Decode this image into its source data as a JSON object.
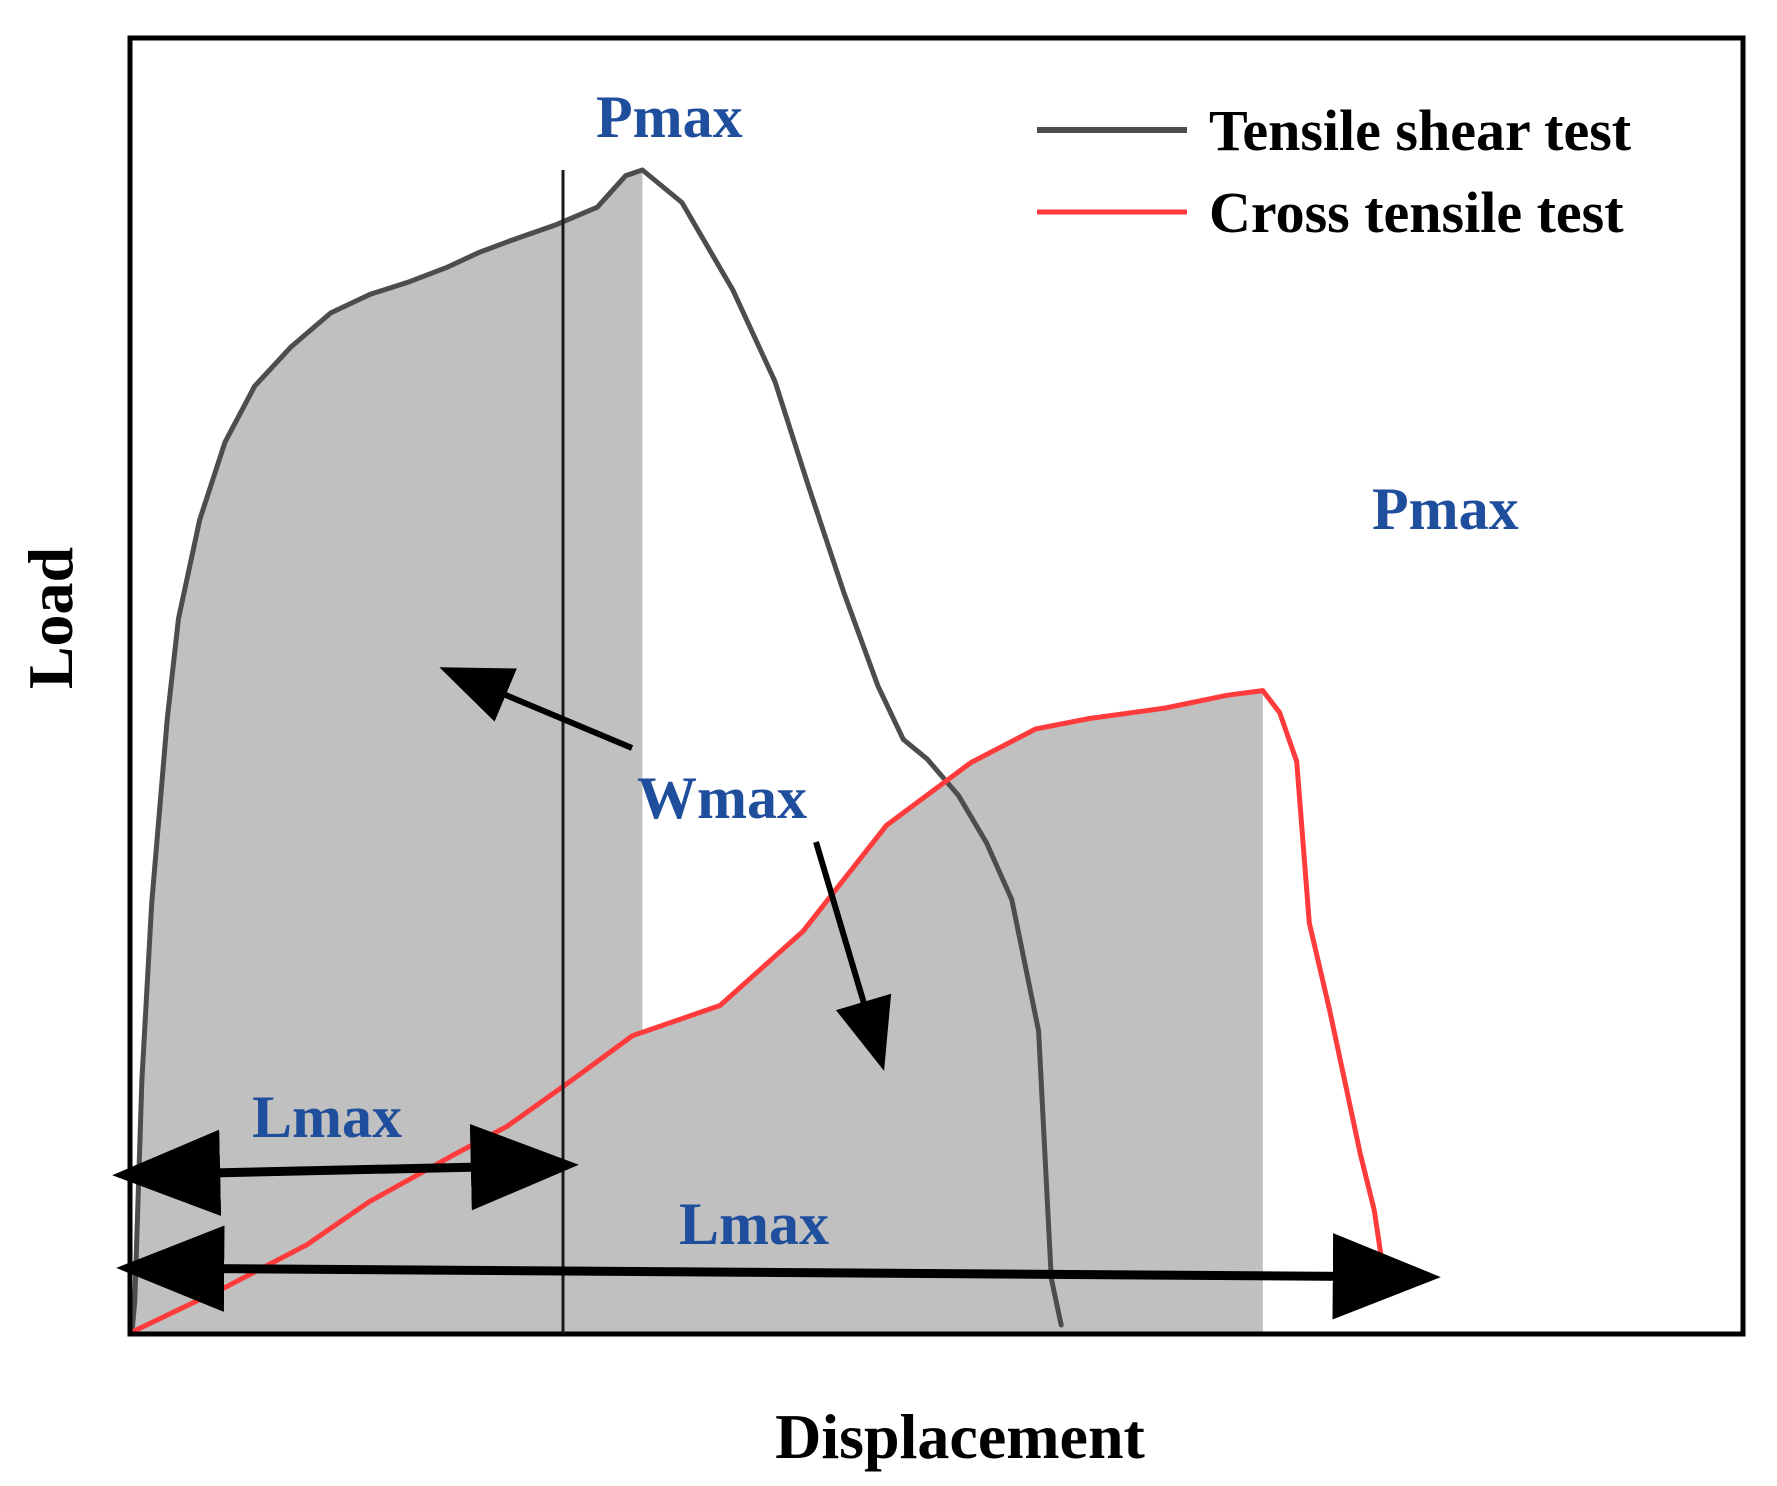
{
  "chart_data": {
    "type": "line",
    "title": "",
    "xlabel": "Displacement",
    "ylabel": "Load",
    "xlim": [
      0,
      100
    ],
    "ylim": [
      0,
      100
    ],
    "grid": false,
    "legend": {
      "placement": "top-right",
      "entries": [
        {
          "label": "Tensile shear test",
          "color": "#4d4d4d"
        },
        {
          "label": "Cross tensile test",
          "color": "#ff3b3b"
        }
      ]
    },
    "series": [
      {
        "name": "Tensile shear test",
        "color": "#4d4d4d",
        "x": [
          0,
          0.2,
          0.7,
          1.4,
          2.5,
          3.3,
          4.8,
          6.6,
          8.7,
          11.3,
          14.1,
          16.9,
          19.7,
          22.3,
          24.6,
          26.8,
          30.1,
          33.0,
          35.0,
          36.2,
          39.0,
          42.6,
          45.6,
          48.0,
          50.5,
          52.9,
          54.7,
          56.4,
          58.6,
          60.6,
          62.4,
          64.3,
          65.2,
          65.9
        ],
        "y": [
          0,
          2.7,
          21.7,
          36.9,
          52.8,
          61.4,
          69.9,
          76.6,
          81.4,
          84.8,
          87.7,
          89.3,
          90.4,
          91.6,
          92.9,
          93.9,
          95.3,
          96.8,
          99.5,
          100,
          97.2,
          89.7,
          81.8,
          72.7,
          63.6,
          55.6,
          51.0,
          49.3,
          46.2,
          42.1,
          37.2,
          25.9,
          4.6,
          0.6
        ]
      },
      {
        "name": "Cross tensile test",
        "color": "#ff3b3b",
        "x": [
          0,
          6.7,
          12.4,
          16.8,
          22.9,
          26.6,
          31.0,
          35.5,
          41.7,
          47.6,
          53.5,
          59.5,
          64.1,
          67.9,
          73.3,
          77.7,
          80.2,
          81.4,
          82.6,
          83.5,
          84.9,
          86.1,
          87.1,
          88.1,
          88.7
        ],
        "y": [
          0,
          3.9,
          7.5,
          11.2,
          15.3,
          17.7,
          21.5,
          25.5,
          28.1,
          34.5,
          43.6,
          49.0,
          51.9,
          52.8,
          53.7,
          54.8,
          55.2,
          53.3,
          49.1,
          35.2,
          27.9,
          21.1,
          15.4,
          10.5,
          5.6
        ]
      }
    ],
    "shaded_regions": [
      {
        "series": "Tensile shear test",
        "x_to": 36.2,
        "color": "#c0c0c0"
      },
      {
        "series": "Cross tensile test",
        "x_to": 80.2,
        "color": "#c0c0c0"
      }
    ],
    "annotations": [
      {
        "id": "pmax_shear",
        "text": "Pmax",
        "color": "#1f4e9c",
        "x": 32,
        "y": 106
      },
      {
        "id": "pmax_cross",
        "text": "Pmax",
        "color": "#1f4e9c",
        "x": 82,
        "y": 69
      },
      {
        "id": "wmax",
        "text": "Wmax",
        "color": "#1f4e9c",
        "x": 38,
        "y": 43
      },
      {
        "id": "lmax_shear",
        "text": "Lmax",
        "color": "#1f4e9c",
        "x": 13,
        "y": 17
      },
      {
        "id": "lmax_cross",
        "text": "Lmax",
        "color": "#1f4e9c",
        "x": 39,
        "y": 8
      }
    ]
  }
}
